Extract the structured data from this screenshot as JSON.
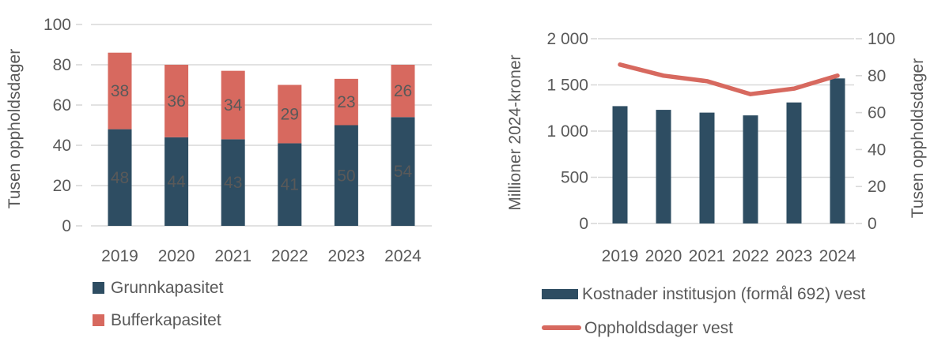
{
  "palette": {
    "dark_blue": "#2E4D62",
    "salmon": "#D7695F",
    "grid": "#D9D9D9",
    "text": "#595959",
    "bar_label": "#F2F1EC",
    "background": "#FFFFFF"
  },
  "chart_data": [
    {
      "type": "bar",
      "variant": "stacked-column",
      "title": "",
      "xlabel": "",
      "ylabel": "Tusen oppholdsdager",
      "ylim": [
        0,
        100
      ],
      "yticks": [
        0,
        20,
        40,
        60,
        80,
        100
      ],
      "categories": [
        "2019",
        "2020",
        "2021",
        "2022",
        "2023",
        "2024"
      ],
      "series": [
        {
          "name": "Grunnkapasitet",
          "color": "#2E4D62",
          "values": [
            48,
            44,
            43,
            41,
            50,
            54
          ]
        },
        {
          "name": "Bufferkapasitet",
          "color": "#D7695F",
          "values": [
            38,
            36,
            34,
            29,
            23,
            26
          ]
        }
      ],
      "stack_totals": [
        86,
        80,
        77,
        70,
        73,
        80
      ],
      "data_labels": true,
      "grid": true,
      "legend_position": "bottom-left"
    },
    {
      "type": "bar+line",
      "title": "",
      "xlabel": "",
      "categories": [
        "2019",
        "2020",
        "2021",
        "2022",
        "2023",
        "2024"
      ],
      "left_axis": {
        "label": "Millioner 2024-kroner",
        "lim": [
          0,
          2000
        ],
        "ticks": [
          {
            "v": 0,
            "label": "0"
          },
          {
            "v": 500,
            "label": "500"
          },
          {
            "v": 1000,
            "label": "1 000"
          },
          {
            "v": 1500,
            "label": "1 500"
          },
          {
            "v": 2000,
            "label": "2 000"
          }
        ]
      },
      "right_axis": {
        "label": "Tusen oppholdsdager",
        "lim": [
          0,
          100
        ],
        "ticks": [
          {
            "v": 0,
            "label": "0"
          },
          {
            "v": 20,
            "label": "20"
          },
          {
            "v": 40,
            "label": "40"
          },
          {
            "v": 60,
            "label": "60"
          },
          {
            "v": 80,
            "label": "80"
          },
          {
            "v": 100,
            "label": "100"
          }
        ]
      },
      "series": [
        {
          "name": "Kostnader institusjon (formål 692) vest",
          "type": "bar",
          "axis": "left",
          "color": "#2E4D62",
          "values": [
            1270,
            1230,
            1200,
            1170,
            1310,
            1570
          ]
        },
        {
          "name": "Oppholdsdager vest",
          "type": "line",
          "axis": "right",
          "color": "#D7695F",
          "values": [
            86,
            80,
            77,
            70,
            73,
            80
          ]
        }
      ],
      "grid": true,
      "legend_position": "bottom"
    }
  ]
}
